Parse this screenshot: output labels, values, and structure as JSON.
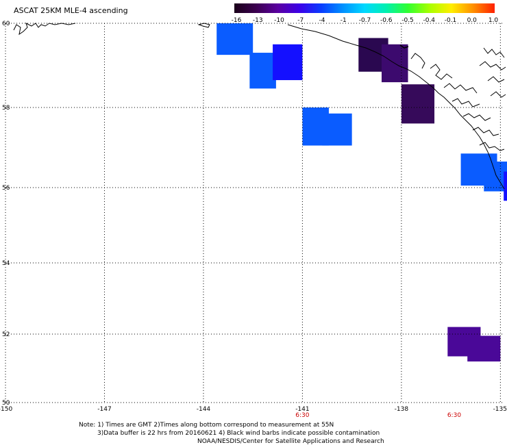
{
  "title": "ASCAT 25KM MLE-4 ascending",
  "colorbar": {
    "labels": [
      "-16",
      "-13",
      "-10",
      "-7",
      "-4",
      "-1",
      "-0.7",
      "-0.6",
      "-0.5",
      "-0.4",
      "-0.1",
      "0.0",
      "1.0"
    ],
    "colors": [
      "#1a001a",
      "#3b004f",
      "#5a00a0",
      "#3c00e8",
      "#0a3cff",
      "#0090ff",
      "#00d8ff",
      "#00f0b0",
      "#30ff30",
      "#a8ff00",
      "#ffee00",
      "#ff9000",
      "#ff2000"
    ]
  },
  "lat_labels": [
    "60",
    "58",
    "56",
    "54",
    "52",
    "50"
  ],
  "lon_labels": [
    "-150",
    "-147",
    "-144",
    "-141",
    "-138",
    "-135"
  ],
  "time_labels": [
    {
      "lon": -141,
      "text": "6:30"
    },
    {
      "lon": -136.4,
      "text": "6:30"
    }
  ],
  "notes": {
    "line1": "Note: 1) Times are GMT 2)Times along bottom correspond to measurement at 55N",
    "line2": "3)Data buffer is 22 hrs from 20160621 4) Black wind barbs indicate possible contamination",
    "line3": "NOAA/NESDIS/Center for Satellite Applications and Research"
  },
  "colors": {
    "time_label": "#cc0000",
    "grid": "#000000",
    "coast": "#000000"
  },
  "map": {
    "lon_range": [
      -150,
      -134.8
    ],
    "lat_range": [
      50,
      60
    ],
    "grid": "dotted",
    "data_cells": [
      {
        "lon": [
          -143.6,
          -142.5
        ],
        "lat": [
          59.25,
          60
        ],
        "color": "#0a5cff"
      },
      {
        "lon": [
          -142.6,
          -141.8
        ],
        "lat": [
          58.45,
          59.3
        ],
        "color": "#0a5cff"
      },
      {
        "lon": [
          -141.9,
          -141.0
        ],
        "lat": [
          58.65,
          59.5
        ],
        "color": "#1410ff"
      },
      {
        "lon": [
          -141.0,
          -140.2
        ],
        "lat": [
          57.05,
          58.0
        ],
        "color": "#0a5cff"
      },
      {
        "lon": [
          -140.4,
          -139.5
        ],
        "lat": [
          57.05,
          57.85
        ],
        "color": "#0a5cff"
      },
      {
        "lon": [
          -139.3,
          -138.4
        ],
        "lat": [
          58.85,
          59.65
        ],
        "color": "#2a0850"
      },
      {
        "lon": [
          -138.6,
          -137.8
        ],
        "lat": [
          58.6,
          59.5
        ],
        "color": "#3c0a6e"
      },
      {
        "lon": [
          -138.0,
          -137.0
        ],
        "lat": [
          57.6,
          58.55
        ],
        "color": "#360a5a"
      },
      {
        "lon": [
          -136.2,
          -135.1
        ],
        "lat": [
          56.05,
          56.85
        ],
        "color": "#0a5cff"
      },
      {
        "lon": [
          -135.5,
          -134.8
        ],
        "lat": [
          55.9,
          56.65
        ],
        "color": "#0a5cff"
      },
      {
        "lon": [
          -134.9,
          -134.8
        ],
        "lat": [
          55.65,
          56.4
        ],
        "color": "#1410ff"
      },
      {
        "lon": [
          -136.6,
          -135.6
        ],
        "lat": [
          51.35,
          52.2
        ],
        "color": "#4a0898"
      },
      {
        "lon": [
          -136.0,
          -135.0
        ],
        "lat": [
          51.2,
          51.95
        ],
        "color": "#4a0898"
      }
    ]
  }
}
